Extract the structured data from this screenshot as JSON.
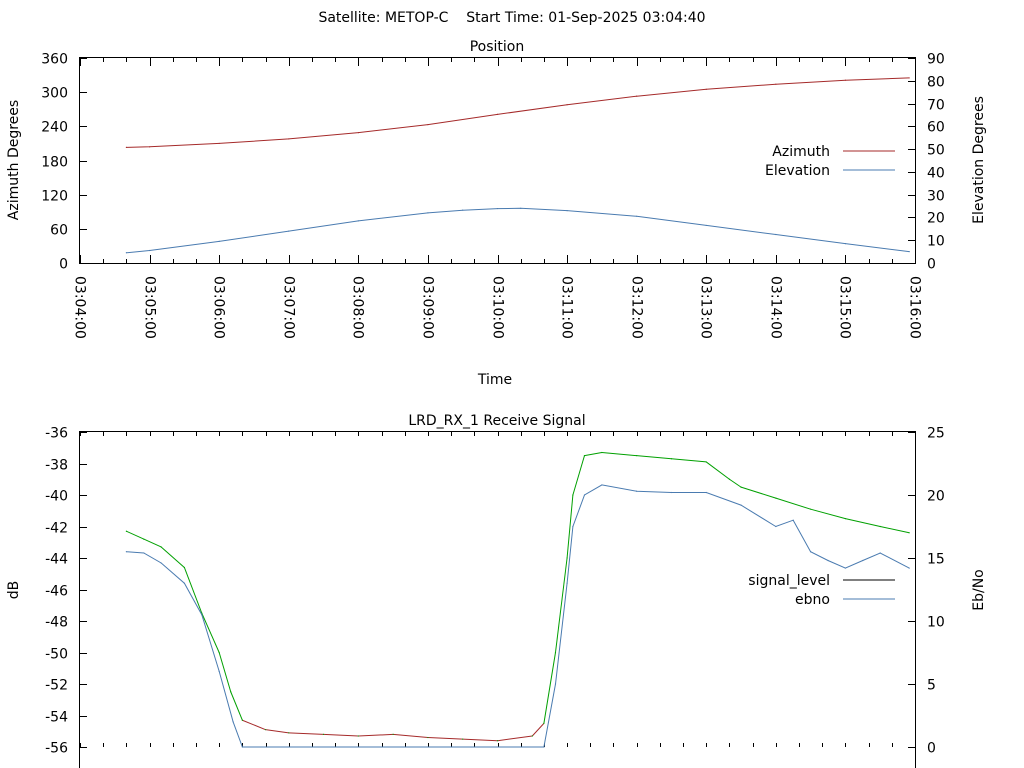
{
  "header": {
    "title": "Satellite: METOP-C    Start Time: 01-Sep-2025 03:04:40"
  },
  "chart_data": [
    {
      "type": "line",
      "title": "Position",
      "xlabel": "Time",
      "ylabel": "Azimuth Degrees",
      "y2label": "Elevation Degrees",
      "xlim": [
        "03:04:00",
        "03:16:00"
      ],
      "ylim": [
        0,
        360
      ],
      "y2lim": [
        0,
        90
      ],
      "x_ticks": [
        "03:04:00",
        "03:05:00",
        "03:06:00",
        "03:07:00",
        "03:08:00",
        "03:09:00",
        "03:10:00",
        "03:11:00",
        "03:12:00",
        "03:13:00",
        "03:14:00",
        "03:15:00",
        "03:16:00"
      ],
      "y_ticks": [
        "0",
        "60",
        "120",
        "180",
        "240",
        "300",
        "360"
      ],
      "y2_ticks": [
        "0",
        "10",
        "20",
        "30",
        "40",
        "50",
        "60",
        "70",
        "80",
        "90"
      ],
      "legend_position": "right",
      "series": [
        {
          "name": "Azimuth",
          "axis": "left",
          "color": "#a52a2a",
          "x": [
            "03:04:40",
            "03:05:00",
            "03:06:00",
            "03:07:00",
            "03:08:00",
            "03:09:00",
            "03:10:00",
            "03:11:00",
            "03:12:00",
            "03:13:00",
            "03:14:00",
            "03:15:00",
            "03:15:55"
          ],
          "y": [
            203,
            204,
            210,
            218,
            229,
            243,
            261,
            278,
            293,
            305,
            314,
            321,
            325
          ]
        },
        {
          "name": "Elevation",
          "axis": "right",
          "color": "#4a7bb0",
          "x": [
            "03:04:40",
            "03:05:00",
            "03:06:00",
            "03:07:00",
            "03:08:00",
            "03:09:00",
            "03:09:30",
            "03:10:00",
            "03:10:20",
            "03:11:00",
            "03:12:00",
            "03:13:00",
            "03:14:00",
            "03:15:00",
            "03:15:55"
          ],
          "y": [
            4.5,
            5.5,
            9.5,
            14,
            18.5,
            22,
            23.2,
            23.9,
            24,
            23,
            20.5,
            16.5,
            12.5,
            8.5,
            5
          ]
        }
      ]
    },
    {
      "type": "line",
      "title": "LRD_RX_1 Receive Signal",
      "xlabel": "",
      "ylabel": "dB",
      "y2label": "Eb/No",
      "xlim": [
        "03:04:00",
        "03:16:00"
      ],
      "ylim": [
        -56,
        -36
      ],
      "y2lim": [
        0,
        25
      ],
      "y_ticks": [
        "-36",
        "-38",
        "-40",
        "-42",
        "-44",
        "-46",
        "-48",
        "-50",
        "-52",
        "-54",
        "-56"
      ],
      "y2_ticks": [
        "0",
        "5",
        "10",
        "15",
        "20",
        "25"
      ],
      "legend_position": "right",
      "legend_entries": [
        "signal_level",
        "ebno"
      ],
      "series": [
        {
          "name": "signal_level",
          "axis": "left",
          "color_segments": [
            "#00a000",
            "#a52a2a"
          ],
          "color_note_threshold": -54,
          "x": [
            "03:04:40",
            "03:04:55",
            "03:05:10",
            "03:05:30",
            "03:05:45",
            "03:06:00",
            "03:06:10",
            "03:06:20",
            "03:06:40",
            "03:07:00",
            "03:07:30",
            "03:08:00",
            "03:08:30",
            "03:09:00",
            "03:09:30",
            "03:10:00",
            "03:10:30",
            "03:10:40",
            "03:10:50",
            "03:11:00",
            "03:11:05",
            "03:11:15",
            "03:11:30",
            "03:12:00",
            "03:12:30",
            "03:13:00",
            "03:13:20",
            "03:13:30",
            "03:14:00",
            "03:14:30",
            "03:15:00",
            "03:15:30",
            "03:15:55"
          ],
          "y": [
            -42.3,
            -42.8,
            -43.3,
            -44.6,
            -47.5,
            -50.0,
            -52.5,
            -54.3,
            -54.9,
            -55.1,
            -55.2,
            -55.3,
            -55.2,
            -55.4,
            -55.5,
            -55.6,
            -55.3,
            -54.5,
            -50.0,
            -44.0,
            -40.0,
            -37.5,
            -37.3,
            -37.5,
            -37.7,
            -37.9,
            -39.0,
            -39.5,
            -40.2,
            -40.9,
            -41.5,
            -42.0,
            -42.4
          ]
        },
        {
          "name": "ebno",
          "axis": "right",
          "color": "#4a7bb0",
          "x": [
            "03:04:40",
            "03:04:55",
            "03:05:10",
            "03:05:30",
            "03:05:45",
            "03:06:00",
            "03:06:12",
            "03:06:20",
            "03:10:40",
            "03:10:50",
            "03:11:00",
            "03:11:05",
            "03:11:15",
            "03:11:30",
            "03:12:00",
            "03:12:30",
            "03:13:00",
            "03:13:30",
            "03:14:00",
            "03:14:15",
            "03:14:30",
            "03:14:45",
            "03:15:00",
            "03:15:15",
            "03:15:30",
            "03:15:55"
          ],
          "y": [
            15.5,
            15.4,
            14.6,
            13.0,
            10.5,
            6.0,
            2.0,
            0.0,
            0.0,
            5.0,
            13.0,
            17.5,
            20.0,
            20.8,
            20.3,
            20.2,
            20.2,
            19.2,
            17.5,
            18.0,
            15.5,
            14.8,
            14.2,
            14.8,
            15.4,
            14.2
          ]
        }
      ]
    }
  ]
}
